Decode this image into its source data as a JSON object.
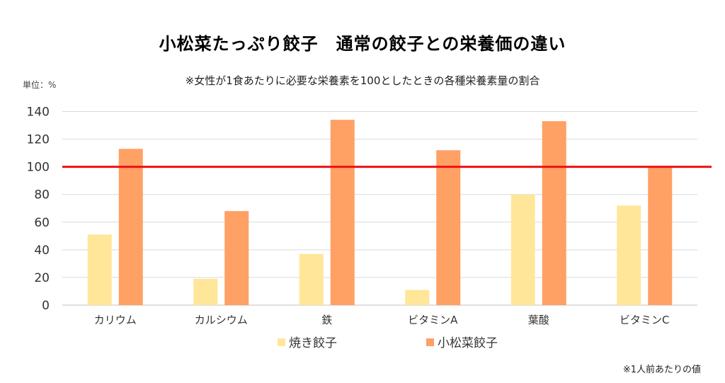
{
  "chart_data": {
    "type": "bar",
    "title": "小松菜たっぷり餃子　通常の餃子との栄養価の違い",
    "subtitle": "※女性が1食あたりに必要な栄養素を100としたときの各種栄養素量の割合",
    "unit_label": "単位：%",
    "footnote": "※1人前あたりの値",
    "categories": [
      "カリウム",
      "カルシウム",
      "鉄",
      "ビタミンA",
      "葉酸",
      "ビタミンC"
    ],
    "series": [
      {
        "name": "焼き餃子",
        "values": [
          51,
          19,
          37,
          11,
          80,
          72
        ],
        "color": "#FFE699"
      },
      {
        "name": "小松菜餃子",
        "values": [
          113,
          68,
          134,
          112,
          133,
          100
        ],
        "color": "#FFA065"
      }
    ],
    "yticks": [
      0,
      20,
      40,
      60,
      80,
      100,
      120,
      140
    ],
    "ylim": [
      0,
      140
    ],
    "reference_line": {
      "value": 100,
      "color": "#EE1111"
    },
    "grid": true,
    "legend_position": "bottom"
  }
}
